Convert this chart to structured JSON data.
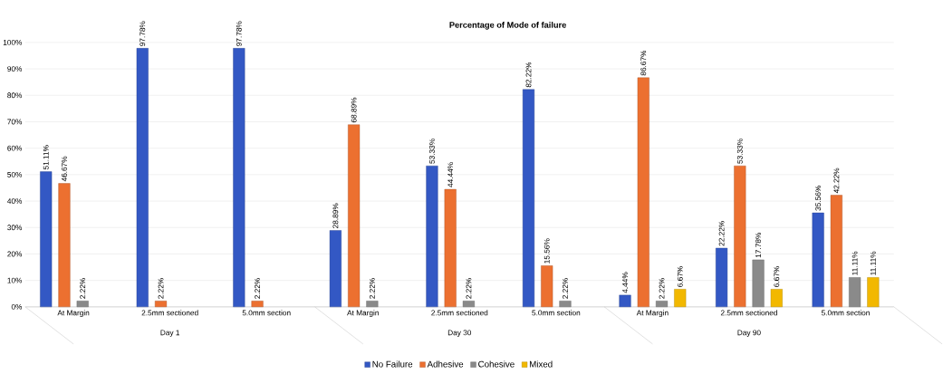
{
  "chart_data": {
    "type": "bar",
    "title": "Percentage of Mode of failure",
    "categories": [
      "At Margin",
      "2.5mm sectioned",
      "5.0mm section",
      "At Margin",
      "2.5mm sectioned",
      "5.0mm section",
      "At Margin",
      "2.5mm sectioned",
      "5.0mm section"
    ],
    "series": [
      {
        "name": "No Failure",
        "color": "#3358c4",
        "values": [
          51.11,
          97.78,
          97.78,
          28.89,
          53.33,
          82.22,
          4.44,
          22.22,
          35.56
        ],
        "value_labels": [
          "51.11%",
          "97.78%",
          "97.78%",
          "28.89%",
          "53.33%",
          "82.22%",
          "4.44%",
          "22.22%",
          "35.56%"
        ]
      },
      {
        "name": "Adhesive",
        "color": "#ec7030",
        "values": [
          46.67,
          2.22,
          2.22,
          68.89,
          44.44,
          15.56,
          86.67,
          53.33,
          42.22
        ],
        "value_labels": [
          "46.67%",
          "2.22%",
          "2.22%",
          "68.89%",
          "44.44%",
          "15.56%",
          "86.67%",
          "53.33%",
          "42.22%"
        ]
      },
      {
        "name": "Cohesive",
        "color": "#8a8a8a",
        "values": [
          2.22,
          null,
          null,
          2.22,
          2.22,
          2.22,
          2.22,
          17.78,
          11.11
        ],
        "value_labels": [
          "2.22%",
          null,
          null,
          "2.22%",
          "2.22%",
          "2.22%",
          "2.22%",
          "17.78%",
          "11.11%"
        ]
      },
      {
        "name": "Mixed",
        "color": "#f2b800",
        "values": [
          null,
          null,
          null,
          null,
          null,
          null,
          6.67,
          6.67,
          11.11
        ],
        "value_labels": [
          null,
          null,
          null,
          null,
          null,
          null,
          "6.67%",
          "6.67%",
          "11.11%"
        ]
      }
    ],
    "ylim": [
      0,
      100
    ],
    "yticks": [
      {
        "value": 0,
        "label": "0%"
      },
      {
        "value": 10,
        "label": "10%"
      },
      {
        "value": 20,
        "label": "20%"
      },
      {
        "value": 30,
        "label": "30%"
      },
      {
        "value": 40,
        "label": "40%"
      },
      {
        "value": 50,
        "label": "50%"
      },
      {
        "value": 60,
        "label": "60%"
      },
      {
        "value": 70,
        "label": "70%"
      },
      {
        "value": 80,
        "label": "80%"
      },
      {
        "value": 90,
        "label": "90%"
      },
      {
        "value": 100,
        "label": "100%"
      }
    ],
    "grid": "y",
    "legend": "bottom",
    "annotations": [
      "Day 1",
      "Day 30",
      "Day 90"
    ]
  }
}
